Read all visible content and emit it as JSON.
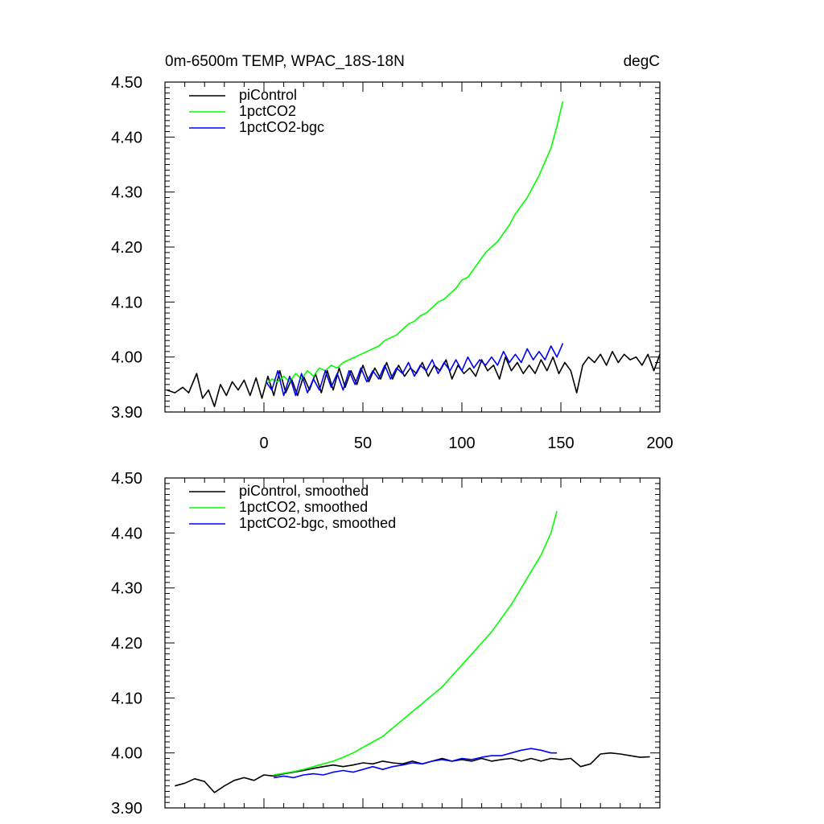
{
  "chart_data": [
    {
      "type": "line",
      "title": "0m-6500m TEMP, WPAC_18S-18N",
      "units": "degC",
      "xlim": [
        -50,
        200
      ],
      "ylim": [
        3.9,
        4.5
      ],
      "xticks": [
        "0",
        "50",
        "100",
        "150",
        "200"
      ],
      "yticks": [
        "3.90",
        "4.00",
        "4.10",
        "4.20",
        "4.30",
        "4.40",
        "4.50"
      ],
      "legend_position": "top-left",
      "series": [
        {
          "name": "piControl",
          "color": "#000000",
          "x": [
            -49,
            -45,
            -41,
            -38,
            -34,
            -31,
            -28,
            -25,
            -22,
            -19,
            -16,
            -13,
            -10,
            -7,
            -4,
            -1,
            2,
            5,
            8,
            11,
            14,
            17,
            20,
            23,
            26,
            29,
            32,
            35,
            38,
            41,
            44,
            47,
            50,
            53,
            56,
            59,
            62,
            65,
            68,
            71,
            74,
            77,
            80,
            83,
            86,
            89,
            92,
            95,
            98,
            101,
            104,
            107,
            110,
            113,
            116,
            119,
            122,
            125,
            128,
            131,
            134,
            137,
            140,
            143,
            146,
            149,
            152,
            155,
            158,
            161,
            164,
            167,
            170,
            173,
            176,
            179,
            182,
            185,
            188,
            191,
            194,
            197,
            200
          ],
          "values": [
            3.94,
            3.935,
            3.945,
            3.935,
            3.97,
            3.925,
            3.94,
            3.91,
            3.95,
            3.93,
            3.955,
            3.94,
            3.958,
            3.93,
            3.962,
            3.925,
            3.965,
            3.93,
            3.975,
            3.935,
            3.96,
            3.93,
            3.965,
            3.94,
            3.97,
            3.935,
            3.975,
            3.94,
            3.98,
            3.945,
            3.975,
            3.95,
            3.985,
            3.955,
            3.98,
            3.96,
            3.99,
            3.96,
            3.985,
            3.965,
            3.98,
            3.97,
            3.99,
            3.965,
            3.985,
            3.975,
            3.995,
            3.96,
            3.985,
            3.97,
            3.98,
            3.965,
            3.995,
            3.975,
            3.985,
            3.96,
            4.0,
            3.975,
            3.99,
            3.97,
            3.985,
            3.97,
            3.995,
            3.975,
            4.0,
            3.97,
            3.99,
            3.975,
            3.935,
            3.985,
            4.0,
            3.99,
            4.005,
            3.985,
            4.01,
            3.99,
            4.005,
            3.995,
            4.0,
            3.985,
            4.005,
            3.975,
            4.005
          ]
        },
        {
          "name": "1pctCO2",
          "color": "#00ff00",
          "x": [
            1,
            4,
            7,
            10,
            13,
            16,
            19,
            22,
            25,
            28,
            31,
            34,
            37,
            40,
            43,
            46,
            49,
            52,
            55,
            58,
            61,
            64,
            67,
            70,
            73,
            76,
            79,
            82,
            85,
            88,
            91,
            94,
            97,
            100,
            103,
            106,
            109,
            112,
            115,
            118,
            121,
            124,
            127,
            130,
            133,
            136,
            139,
            142,
            145,
            148,
            151
          ],
          "values": [
            3.95,
            3.96,
            3.955,
            3.965,
            3.955,
            3.97,
            3.96,
            3.975,
            3.965,
            3.98,
            3.975,
            3.985,
            3.98,
            3.99,
            3.995,
            4.0,
            4.005,
            4.01,
            4.015,
            4.02,
            4.03,
            4.035,
            4.04,
            4.05,
            4.06,
            4.065,
            4.075,
            4.08,
            4.09,
            4.1,
            4.105,
            4.115,
            4.125,
            4.14,
            4.145,
            4.16,
            4.175,
            4.19,
            4.2,
            4.21,
            4.225,
            4.24,
            4.26,
            4.275,
            4.29,
            4.31,
            4.33,
            4.355,
            4.38,
            4.42,
            4.465
          ]
        },
        {
          "name": "1pctCO2-bgc",
          "color": "#0000ff",
          "x": [
            1,
            4,
            7,
            10,
            13,
            16,
            19,
            22,
            25,
            28,
            31,
            34,
            37,
            40,
            43,
            46,
            49,
            52,
            55,
            58,
            61,
            64,
            67,
            70,
            73,
            76,
            79,
            82,
            85,
            88,
            91,
            94,
            97,
            100,
            103,
            106,
            109,
            112,
            115,
            118,
            121,
            124,
            127,
            130,
            133,
            136,
            139,
            142,
            145,
            148,
            151
          ],
          "values": [
            3.955,
            3.94,
            3.975,
            3.93,
            3.965,
            3.93,
            3.97,
            3.935,
            3.96,
            3.94,
            3.975,
            3.945,
            3.97,
            3.94,
            3.975,
            3.95,
            3.98,
            3.955,
            3.975,
            3.96,
            3.985,
            3.96,
            3.98,
            3.97,
            3.99,
            3.965,
            3.985,
            3.975,
            3.995,
            3.97,
            3.99,
            3.975,
            3.995,
            3.975,
            4.0,
            3.98,
            3.995,
            3.985,
            4.0,
            3.985,
            4.01,
            3.99,
            4.005,
            3.99,
            4.015,
            3.995,
            4.01,
            3.995,
            4.02,
            4.0,
            4.025
          ]
        }
      ]
    },
    {
      "type": "line",
      "title": "",
      "xlim": [
        -50,
        200
      ],
      "ylim": [
        3.9,
        4.5
      ],
      "xticks": [],
      "yticks": [
        "3.90",
        "4.00",
        "4.10",
        "4.20",
        "4.30",
        "4.40",
        "4.50"
      ],
      "legend_position": "top-left",
      "series": [
        {
          "name": "piControl, smoothed",
          "color": "#000000",
          "x": [
            -45,
            -40,
            -35,
            -30,
            -25,
            -20,
            -15,
            -10,
            -5,
            0,
            5,
            10,
            15,
            20,
            25,
            30,
            35,
            40,
            45,
            50,
            55,
            60,
            65,
            70,
            75,
            80,
            85,
            90,
            95,
            100,
            105,
            110,
            115,
            120,
            125,
            130,
            135,
            140,
            145,
            150,
            155,
            160,
            165,
            170,
            175,
            180,
            185,
            190,
            195
          ],
          "values": [
            3.94,
            3.945,
            3.953,
            3.948,
            3.928,
            3.94,
            3.95,
            3.955,
            3.95,
            3.96,
            3.958,
            3.962,
            3.965,
            3.968,
            3.972,
            3.975,
            3.978,
            3.975,
            3.978,
            3.982,
            3.98,
            3.985,
            3.982,
            3.98,
            3.985,
            3.98,
            3.985,
            3.99,
            3.985,
            3.988,
            3.985,
            3.99,
            3.985,
            3.988,
            3.99,
            3.985,
            3.99,
            3.985,
            3.99,
            3.988,
            3.99,
            3.975,
            3.98,
            3.998,
            4.0,
            3.998,
            3.995,
            3.992,
            3.993
          ]
        },
        {
          "name": "1pctCO2, smoothed",
          "color": "#00ff00",
          "x": [
            5,
            10,
            15,
            20,
            25,
            30,
            35,
            40,
            45,
            50,
            55,
            60,
            65,
            70,
            75,
            80,
            85,
            90,
            95,
            100,
            105,
            110,
            115,
            120,
            125,
            130,
            135,
            140,
            145,
            148
          ],
          "values": [
            3.96,
            3.963,
            3.966,
            3.97,
            3.975,
            3.98,
            3.985,
            3.992,
            4.0,
            4.01,
            4.02,
            4.03,
            4.045,
            4.06,
            4.075,
            4.09,
            4.105,
            4.12,
            4.14,
            4.16,
            4.18,
            4.2,
            4.22,
            4.245,
            4.27,
            4.3,
            4.33,
            4.36,
            4.4,
            4.44
          ]
        },
        {
          "name": "1pctCO2-bgc, smoothed",
          "color": "#0000ff",
          "x": [
            5,
            10,
            15,
            20,
            25,
            30,
            35,
            40,
            45,
            50,
            55,
            60,
            65,
            70,
            75,
            80,
            85,
            90,
            95,
            100,
            105,
            110,
            115,
            120,
            125,
            130,
            135,
            140,
            145,
            148
          ],
          "values": [
            3.955,
            3.958,
            3.955,
            3.96,
            3.962,
            3.96,
            3.965,
            3.968,
            3.965,
            3.97,
            3.975,
            3.97,
            3.975,
            3.978,
            3.982,
            3.98,
            3.985,
            3.988,
            3.985,
            3.99,
            3.988,
            3.992,
            3.995,
            3.995,
            4.0,
            4.005,
            4.008,
            4.005,
            4.0,
            4.0
          ]
        }
      ]
    }
  ]
}
